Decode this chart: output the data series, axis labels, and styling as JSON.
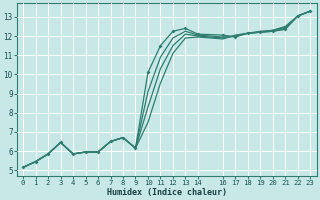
{
  "xlabel": "Humidex (Indice chaleur)",
  "bg_color": "#c8e8e8",
  "grid_color": "#b0d0d0",
  "line_color": "#2e7d6e",
  "xlim": [
    -0.5,
    23.5
  ],
  "ylim": [
    4.7,
    13.7
  ],
  "xticks": [
    0,
    1,
    2,
    3,
    4,
    5,
    6,
    7,
    8,
    9,
    10,
    11,
    12,
    13,
    14,
    16,
    17,
    18,
    19,
    20,
    21,
    22,
    23
  ],
  "yticks": [
    5,
    6,
    7,
    8,
    9,
    10,
    11,
    12,
    13
  ],
  "line1_x": [
    0,
    1,
    2,
    3,
    4,
    5,
    6,
    7,
    8,
    9,
    10,
    11,
    12,
    13,
    14,
    16,
    17,
    18,
    19,
    20,
    21,
    22,
    23
  ],
  "line1_y": [
    5.15,
    5.45,
    5.85,
    6.45,
    5.85,
    5.95,
    5.95,
    6.5,
    6.7,
    6.15,
    10.1,
    11.5,
    12.25,
    12.4,
    12.1,
    12.05,
    11.95,
    12.15,
    12.2,
    12.25,
    12.35,
    13.05,
    13.3
  ],
  "line2_x": [
    0,
    1,
    2,
    3,
    4,
    5,
    6,
    7,
    8,
    9,
    10,
    11,
    12,
    13,
    14,
    16,
    17,
    18,
    19,
    20,
    21,
    22,
    23
  ],
  "line2_y": [
    5.15,
    5.45,
    5.85,
    6.45,
    5.85,
    5.95,
    5.95,
    6.5,
    6.7,
    6.15,
    9.1,
    10.9,
    11.9,
    12.25,
    12.05,
    11.95,
    12.0,
    12.15,
    12.2,
    12.25,
    12.4,
    13.05,
    13.3
  ],
  "line3_x": [
    0,
    1,
    2,
    3,
    4,
    5,
    6,
    7,
    8,
    9,
    10,
    11,
    12,
    13,
    14,
    16,
    17,
    18,
    19,
    20,
    21,
    22,
    23
  ],
  "line3_y": [
    5.15,
    5.45,
    5.85,
    6.45,
    5.85,
    5.95,
    5.95,
    6.5,
    6.7,
    6.15,
    8.3,
    10.3,
    11.5,
    12.1,
    12.0,
    11.9,
    12.0,
    12.15,
    12.2,
    12.3,
    12.45,
    13.05,
    13.3
  ],
  "line4_x": [
    0,
    1,
    2,
    3,
    4,
    5,
    6,
    7,
    8,
    9,
    10,
    11,
    12,
    13,
    14,
    16,
    17,
    18,
    19,
    20,
    21,
    22,
    23
  ],
  "line4_y": [
    5.15,
    5.45,
    5.85,
    6.45,
    5.85,
    5.95,
    5.95,
    6.5,
    6.7,
    6.15,
    7.5,
    9.55,
    11.1,
    11.9,
    11.95,
    11.85,
    12.05,
    12.15,
    12.25,
    12.3,
    12.5,
    13.05,
    13.3
  ]
}
